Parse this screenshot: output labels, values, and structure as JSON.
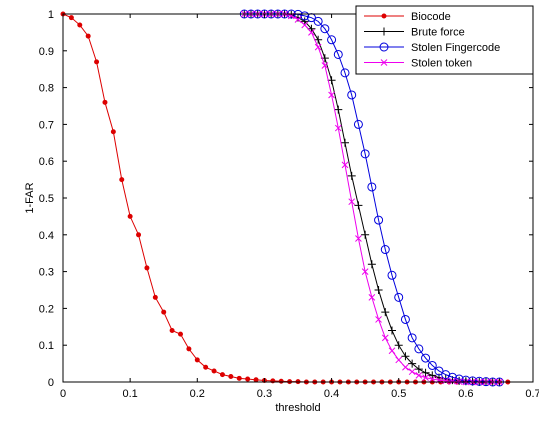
{
  "chart_data": {
    "type": "line",
    "xlabel": "threshold",
    "ylabel": "1-FAR",
    "xlim": [
      0,
      0.7
    ],
    "ylim": [
      0,
      1
    ],
    "xticks": [
      0,
      0.1,
      0.2,
      0.3,
      0.4,
      0.5,
      0.6,
      0.7
    ],
    "xtick_labels": [
      "0",
      "0.1",
      "0.2",
      "0.3",
      "0.4",
      "0.5",
      "0.6",
      "0.7"
    ],
    "yticks": [
      0,
      0.1,
      0.2,
      0.3,
      0.4,
      0.5,
      0.6,
      0.7,
      0.8,
      0.9,
      1
    ],
    "ytick_labels": [
      "0",
      "0.1",
      "0.2",
      "0.3",
      "0.4",
      "0.5",
      "0.6",
      "0.7",
      "0.8",
      "0.9",
      "1"
    ],
    "grid": false,
    "legend_position": "top-right",
    "series": [
      {
        "name": "Biocode",
        "color": "#dd0000",
        "marker": "dot",
        "x": [
          0,
          0.0125,
          0.025,
          0.0375,
          0.05,
          0.0625,
          0.075,
          0.0875,
          0.1,
          0.1125,
          0.125,
          0.1375,
          0.15,
          0.1625,
          0.175,
          0.1875,
          0.2,
          0.2125,
          0.225,
          0.2375,
          0.25,
          0.2625,
          0.275,
          0.2875,
          0.3,
          0.3125,
          0.325,
          0.3375,
          0.35,
          0.3625,
          0.375,
          0.3875,
          0.4,
          0.4125,
          0.425,
          0.4375,
          0.45,
          0.4625,
          0.475,
          0.4875,
          0.5,
          0.5125,
          0.525,
          0.5375,
          0.55,
          0.5625,
          0.575,
          0.5875,
          0.6,
          0.6125,
          0.625,
          0.6375,
          0.65,
          0.6625
        ],
        "y": [
          1,
          0.99,
          0.97,
          0.94,
          0.87,
          0.76,
          0.68,
          0.55,
          0.45,
          0.4,
          0.31,
          0.23,
          0.19,
          0.14,
          0.13,
          0.09,
          0.06,
          0.04,
          0.03,
          0.02,
          0.015,
          0.01,
          0.008,
          0.006,
          0.004,
          0.003,
          0.002,
          0.001,
          0.001,
          0,
          0,
          0,
          0,
          0,
          0,
          0,
          0,
          0,
          0,
          0,
          0,
          0,
          0,
          0,
          0,
          0,
          0,
          0,
          0,
          0,
          0,
          0,
          0,
          0
        ]
      },
      {
        "name": "Brute force",
        "color": "#000000",
        "marker": "plus",
        "x": [
          0.27,
          0.28,
          0.29,
          0.3,
          0.31,
          0.32,
          0.33,
          0.34,
          0.35,
          0.36,
          0.37,
          0.38,
          0.39,
          0.4,
          0.41,
          0.42,
          0.43,
          0.44,
          0.45,
          0.46,
          0.47,
          0.48,
          0.49,
          0.5,
          0.51,
          0.52,
          0.53,
          0.54,
          0.55,
          0.56,
          0.57,
          0.58,
          0.59,
          0.6,
          0.61,
          0.62,
          0.63,
          0.64,
          0.65
        ],
        "y": [
          1,
          1,
          1,
          1,
          1,
          1,
          1,
          0.998,
          0.99,
          0.98,
          0.96,
          0.93,
          0.88,
          0.82,
          0.74,
          0.65,
          0.56,
          0.48,
          0.4,
          0.32,
          0.25,
          0.19,
          0.14,
          0.1,
          0.07,
          0.05,
          0.035,
          0.025,
          0.018,
          0.012,
          0.008,
          0.005,
          0.003,
          0.002,
          0.001,
          0,
          0,
          0,
          0
        ]
      },
      {
        "name": "Stolen Fingercode",
        "color": "#0000dd",
        "marker": "circle",
        "x": [
          0.27,
          0.28,
          0.29,
          0.3,
          0.31,
          0.32,
          0.33,
          0.34,
          0.35,
          0.36,
          0.37,
          0.38,
          0.39,
          0.4,
          0.41,
          0.42,
          0.43,
          0.44,
          0.45,
          0.46,
          0.47,
          0.48,
          0.49,
          0.5,
          0.51,
          0.52,
          0.53,
          0.54,
          0.55,
          0.56,
          0.57,
          0.58,
          0.59,
          0.6,
          0.61,
          0.62,
          0.63,
          0.64,
          0.65
        ],
        "y": [
          1,
          1,
          1,
          1,
          1,
          1,
          1,
          1,
          0.999,
          0.995,
          0.99,
          0.98,
          0.96,
          0.93,
          0.89,
          0.84,
          0.78,
          0.7,
          0.62,
          0.53,
          0.44,
          0.36,
          0.29,
          0.23,
          0.17,
          0.12,
          0.09,
          0.065,
          0.045,
          0.03,
          0.02,
          0.013,
          0.008,
          0.005,
          0.003,
          0.002,
          0.001,
          0,
          0
        ]
      },
      {
        "name": "Stolen token",
        "color": "#ee00ee",
        "marker": "x",
        "x": [
          0.27,
          0.28,
          0.29,
          0.3,
          0.31,
          0.32,
          0.33,
          0.34,
          0.35,
          0.36,
          0.37,
          0.38,
          0.39,
          0.4,
          0.41,
          0.42,
          0.43,
          0.44,
          0.45,
          0.46,
          0.47,
          0.48,
          0.49,
          0.5,
          0.51,
          0.52,
          0.53,
          0.54,
          0.55,
          0.56,
          0.57,
          0.58,
          0.59,
          0.6,
          0.61,
          0.62,
          0.63,
          0.64,
          0.65
        ],
        "y": [
          1,
          1,
          1,
          1,
          1,
          1,
          1,
          0.995,
          0.985,
          0.97,
          0.95,
          0.91,
          0.86,
          0.78,
          0.69,
          0.59,
          0.49,
          0.39,
          0.3,
          0.23,
          0.17,
          0.12,
          0.085,
          0.06,
          0.04,
          0.028,
          0.018,
          0.012,
          0.008,
          0.005,
          0.003,
          0.002,
          0.001,
          0,
          0,
          0,
          0,
          0,
          0
        ]
      }
    ]
  }
}
